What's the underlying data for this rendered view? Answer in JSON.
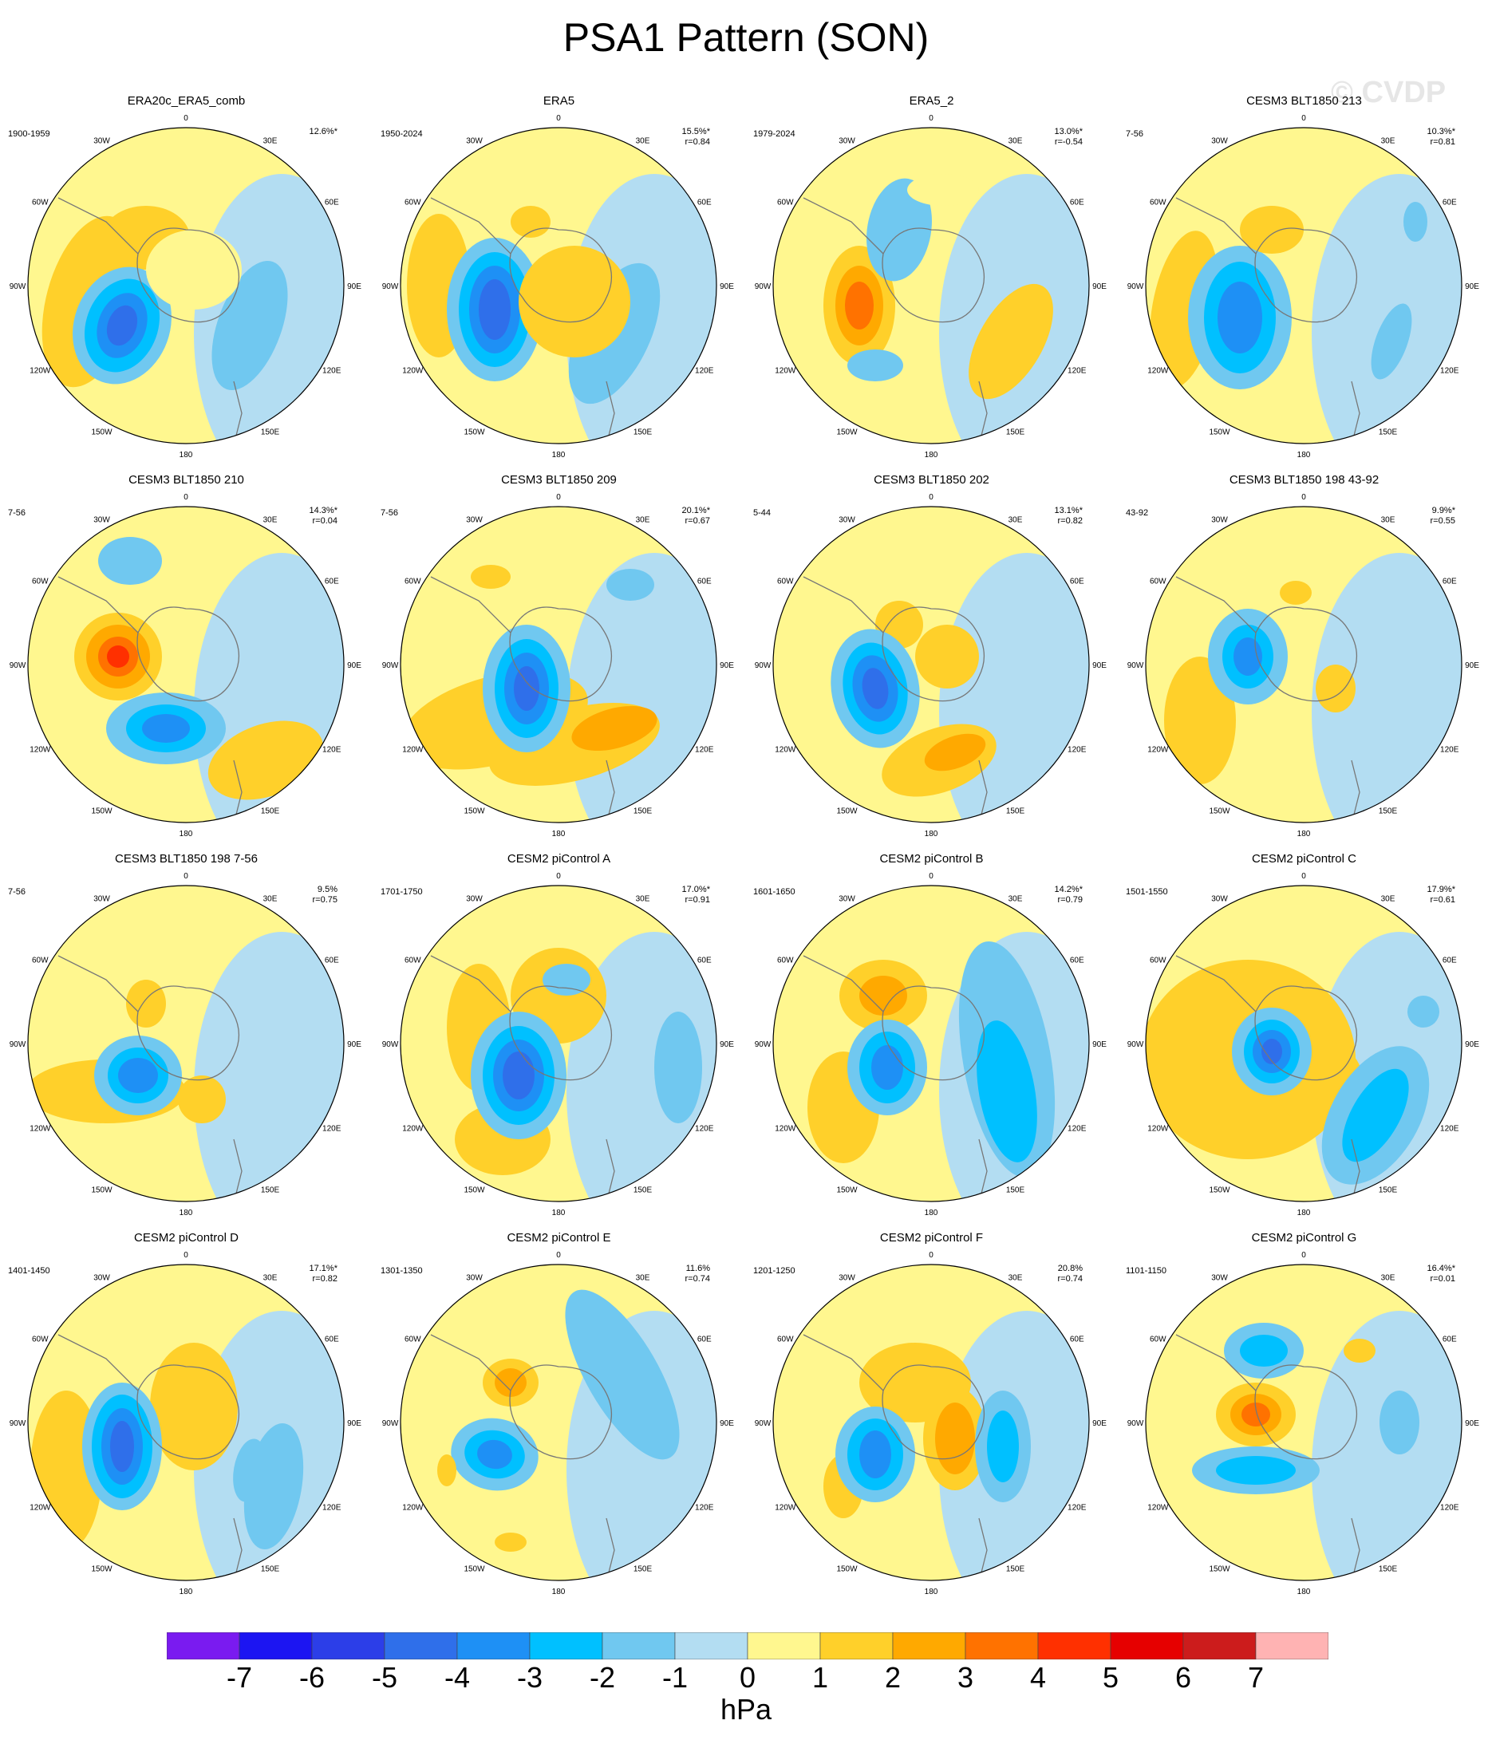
{
  "title": "PSA1 Pattern (SON)",
  "watermark": "© CVDP",
  "units": "hPa",
  "lon_labels": [
    "0",
    "30E",
    "60E",
    "90E",
    "120E",
    "150E",
    "180",
    "150W",
    "120W",
    "90W",
    "60W",
    "30W"
  ],
  "colorbar": {
    "colors": [
      "#7a1bf0",
      "#1c15f2",
      "#2c3ee8",
      "#2f6fea",
      "#1e90f5",
      "#00c0ff",
      "#70c8f0",
      "#b3ddf2",
      "#fff78f",
      "#ffd02a",
      "#ffa900",
      "#ff7200",
      "#ff3000",
      "#e60000",
      "#cc1c1c",
      "#ffb3b3"
    ],
    "labels": [
      "-7",
      "-6",
      "-5",
      "-4",
      "-3",
      "-2",
      "-1",
      "0",
      "1",
      "2",
      "3",
      "4",
      "5",
      "6",
      "7"
    ]
  },
  "panels": [
    {
      "title": "ERA20c_ERA5_comb",
      "period": "1900-1959",
      "pct": "12.6%*",
      "r": ""
    },
    {
      "title": "ERA5",
      "period": "1950-2024",
      "pct": "15.5%*",
      "r": "r=0.84"
    },
    {
      "title": "ERA5_2",
      "period": "1979-2024",
      "pct": "13.0%*",
      "r": "r=-0.54"
    },
    {
      "title": "CESM3 BLT1850 213",
      "period": "7-56",
      "pct": "10.3%*",
      "r": "r=0.81"
    },
    {
      "title": "CESM3 BLT1850 210",
      "period": "7-56",
      "pct": "14.3%*",
      "r": "r=0.04"
    },
    {
      "title": "CESM3 BLT1850 209",
      "period": "7-56",
      "pct": "20.1%*",
      "r": "r=0.67"
    },
    {
      "title": "CESM3 BLT1850 202",
      "period": "5-44",
      "pct": "13.1%*",
      "r": "r=0.82"
    },
    {
      "title": "CESM3 BLT1850 198 43-92",
      "period": "43-92",
      "pct": "9.9%*",
      "r": "r=0.55"
    },
    {
      "title": "CESM3 BLT1850 198 7-56",
      "period": "7-56",
      "pct": "9.5%",
      "r": "r=0.75"
    },
    {
      "title": "CESM2 piControl A",
      "period": "1701-1750",
      "pct": "17.0%*",
      "r": "r=0.91"
    },
    {
      "title": "CESM2 piControl B",
      "period": "1601-1650",
      "pct": "14.2%*",
      "r": "r=0.79"
    },
    {
      "title": "CESM2 piControl C",
      "period": "1501-1550",
      "pct": "17.9%*",
      "r": "r=0.61"
    },
    {
      "title": "CESM2 piControl D",
      "period": "1401-1450",
      "pct": "17.1%*",
      "r": "r=0.82"
    },
    {
      "title": "CESM2 piControl E",
      "period": "1301-1350",
      "pct": "11.6%",
      "r": "r=0.74"
    },
    {
      "title": "CESM2 piControl F",
      "period": "1201-1250",
      "pct": "20.8%",
      "r": "r=0.74"
    },
    {
      "title": "CESM2 piControl G",
      "period": "1101-1150",
      "pct": "16.4%*",
      "r": "r=0.01"
    }
  ]
}
